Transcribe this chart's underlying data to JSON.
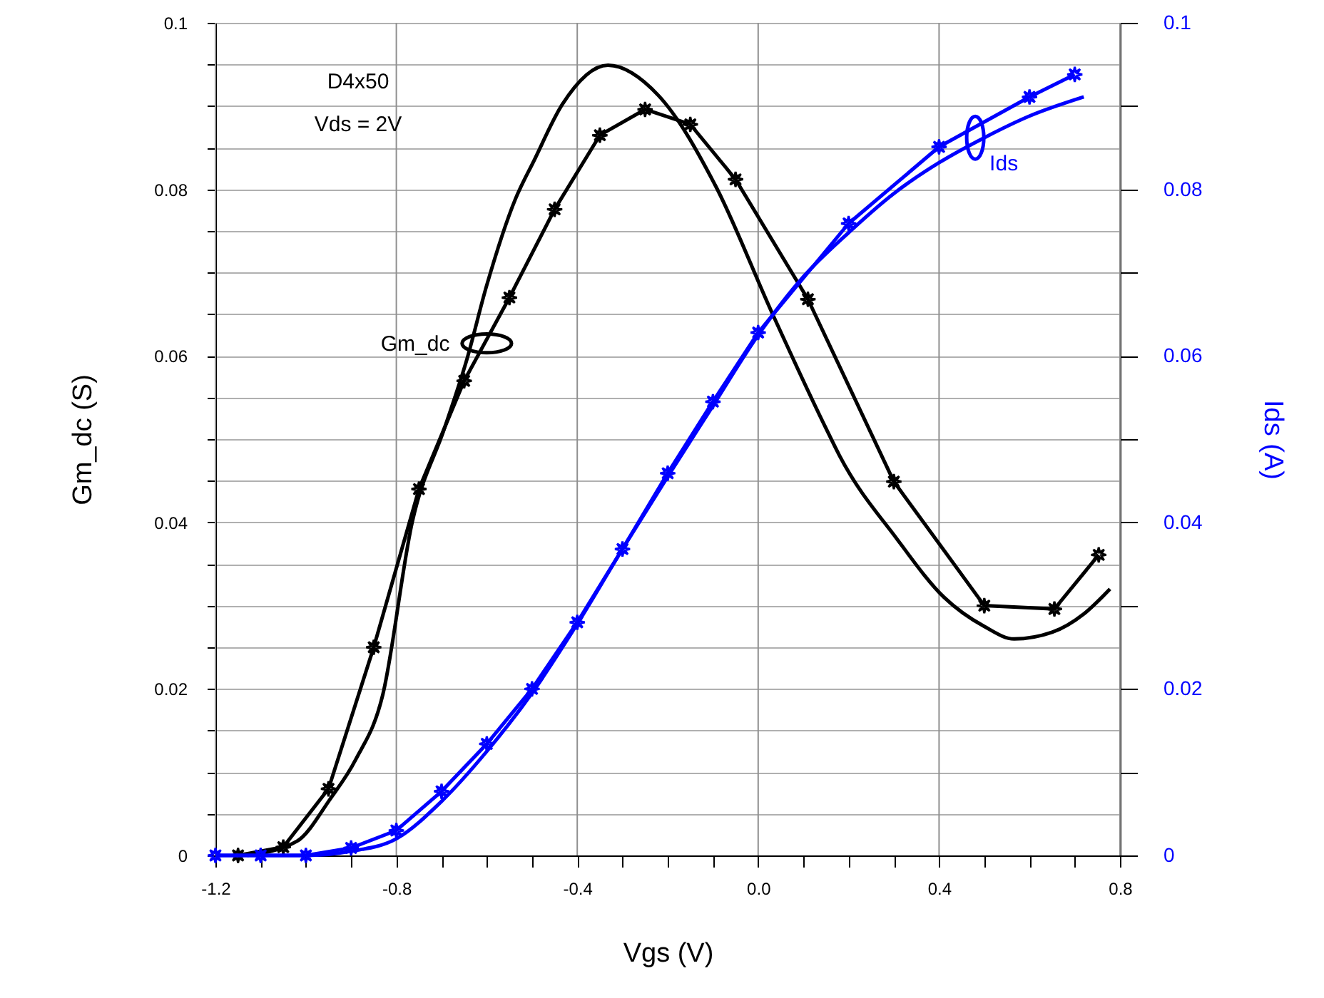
{
  "chart_data": {
    "type": "line",
    "xlabel": "Vgs (V)",
    "ylabel": "Gm_dc (S)",
    "y2label": "Ids (A)",
    "xlim": [
      -1.2,
      0.8
    ],
    "xticks": [
      -1.2,
      {
        "value": -1.1,
        "label": null
      },
      {
        "value": -1.0,
        "label": null
      },
      {
        "value": -0.9,
        "label": null
      },
      -0.8,
      {
        "value": -0.7,
        "label": null
      },
      {
        "value": -0.6,
        "label": null
      },
      {
        "value": -0.5,
        "label": null
      },
      -0.4,
      {
        "value": -0.3,
        "label": null
      },
      {
        "value": -0.2,
        "label": null
      },
      {
        "value": -0.1,
        "label": null
      },
      {
        "value": 0,
        "label": "0.0"
      },
      {
        "value": 0.1,
        "label": null
      },
      {
        "value": 0.2,
        "label": null
      },
      {
        "value": 0.3,
        "label": null
      },
      0.4,
      {
        "value": 0.5,
        "label": null
      },
      {
        "value": 0.6,
        "label": null
      },
      {
        "value": 0.7,
        "label": null
      },
      0.8
    ],
    "ylim": [
      0,
      0.1
    ],
    "yticks": [
      0,
      {
        "value": 0.005,
        "label": null
      },
      {
        "value": 0.01,
        "label": null
      },
      {
        "value": 0.015,
        "label": null
      },
      0.02,
      {
        "value": 0.025,
        "label": null
      },
      {
        "value": 0.03,
        "label": null
      },
      {
        "value": 0.035,
        "label": null
      },
      0.04,
      {
        "value": 0.045,
        "label": null
      },
      {
        "value": 0.05,
        "label": null
      },
      {
        "value": 0.055,
        "label": null
      },
      0.06,
      {
        "value": 0.065,
        "label": null
      },
      {
        "value": 0.07,
        "label": null
      },
      {
        "value": 0.075,
        "label": null
      },
      0.08,
      {
        "value": 0.085,
        "label": null
      },
      {
        "value": 0.09,
        "label": null
      },
      {
        "value": 0.095,
        "label": null
      },
      0.1
    ],
    "y2lim": [
      0,
      0.1
    ],
    "y2ticks": [
      0,
      {
        "value": 0.01,
        "label": null
      },
      0.02,
      {
        "value": 0.03,
        "label": null
      },
      0.04,
      {
        "value": 0.05,
        "label": null
      },
      0.06,
      {
        "value": 0.07,
        "label": null
      },
      0.08,
      {
        "value": 0.09,
        "label": null
      },
      0.1
    ],
    "grid": true,
    "series": [
      {
        "color": "#000000",
        "marker": "none",
        "x": [
          -1.13,
          -1.02,
          -0.946,
          -0.89,
          -0.83,
          -0.765,
          -0.693,
          -0.645,
          -0.6,
          -0.537,
          -0.496,
          -0.433,
          -0.332,
          -0.221,
          -0.095,
          0.032,
          0.149,
          0.18,
          0.307,
          0.411,
          0.5,
          0.566,
          0.65,
          0.72,
          0.778
        ],
        "values": [
          0,
          0.0017,
          0.0068,
          0.0115,
          0.0193,
          0.04,
          0.0514,
          0.0594,
          0.0685,
          0.0788,
          0.0834,
          0.0902,
          0.0949,
          0.0913,
          0.0805,
          0.065,
          0.0514,
          0.048,
          0.038,
          0.031,
          0.0275,
          0.026,
          0.0268,
          0.029,
          0.032
        ]
      },
      {
        "color": "#000000",
        "marker": "star",
        "x": [
          -1.15,
          -1.05,
          -0.95,
          -0.85,
          -0.75,
          -0.65,
          -0.55,
          -0.45,
          -0.35,
          -0.25,
          -0.15,
          -0.05,
          0.11,
          0.3,
          0.5,
          0.655,
          0.753
        ],
        "values": [
          0,
          0.001,
          0.008,
          0.025,
          0.044,
          0.057,
          0.067,
          0.0776,
          0.0865,
          0.0896,
          0.0878,
          0.0812,
          0.0668,
          0.0449,
          0.03,
          0.0296,
          0.0361
        ]
      },
      {
        "color": "#0000ff",
        "marker": "none",
        "axis": "y2",
        "x": [
          -1.2,
          -1.0,
          -0.9,
          -0.8,
          -0.7,
          -0.6,
          -0.5,
          -0.4,
          -0.3,
          -0.2,
          -0.1,
          0.0,
          0.1,
          0.2,
          0.3,
          0.4,
          0.5,
          0.6,
          0.72
        ],
        "values": [
          0,
          0,
          0.0005,
          0.002,
          0.0065,
          0.0125,
          0.0195,
          0.0278,
          0.0368,
          0.0455,
          0.054,
          0.0625,
          0.0695,
          0.0748,
          0.0795,
          0.0832,
          0.0862,
          0.0888,
          0.0911
        ]
      },
      {
        "color": "#0000ff",
        "marker": "star",
        "axis": "y2",
        "x": [
          -1.2,
          -1.1,
          -1.0,
          -0.9,
          -0.8,
          -0.7,
          -0.6,
          -0.5,
          -0.4,
          -0.3,
          -0.2,
          -0.1,
          0.0,
          0.2,
          0.4,
          0.6,
          0.7
        ],
        "values": [
          0,
          0,
          0,
          0.0009,
          0.003,
          0.0077,
          0.0134,
          0.02,
          0.028,
          0.0368,
          0.0459,
          0.0545,
          0.0628,
          0.0759,
          0.0851,
          0.0911,
          0.0938
        ]
      }
    ],
    "annotations": [
      "D4x50",
      "Vds = 2V",
      {
        "text": "Gm_dc",
        "x": -0.6,
        "y": 0.0615
      },
      {
        "text": "Ids",
        "x": 0.48,
        "y": 0.0862
      }
    ]
  }
}
